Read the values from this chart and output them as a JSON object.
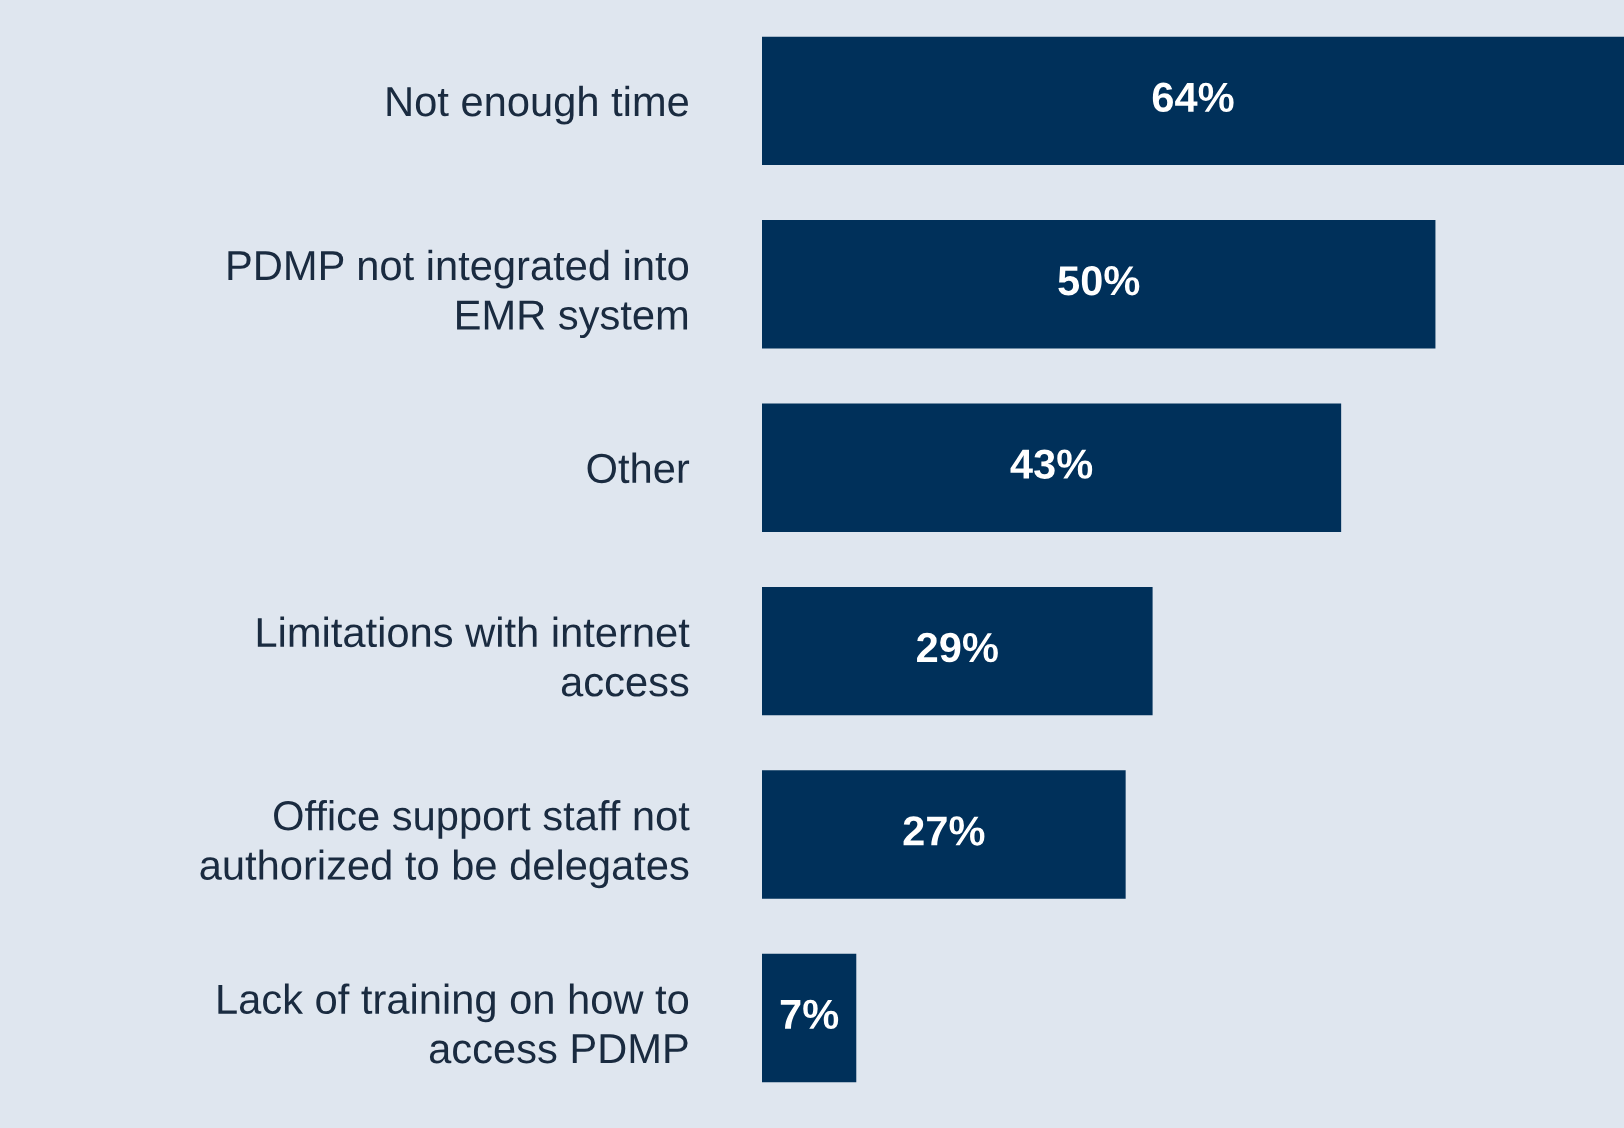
{
  "chart_data": {
    "type": "bar",
    "orientation": "horizontal",
    "categories": [
      "Not enough time",
      "PDMP not integrated into\nEMR system",
      "Other",
      "Limitations with internet\naccess",
      "Office support staff not\nauthorized to be delegates",
      "Lack of training on how to\naccess PDMP"
    ],
    "values": [
      64,
      50,
      43,
      29,
      27,
      7
    ],
    "value_labels": [
      "64%",
      "50%",
      "43%",
      "29%",
      "27%",
      "7%"
    ],
    "color": "#00305a",
    "grid": false,
    "legend": false
  }
}
